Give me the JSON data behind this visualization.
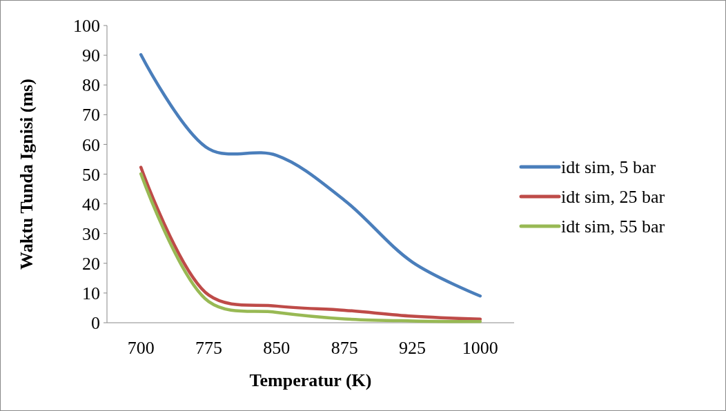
{
  "chart_data": {
    "type": "line",
    "xlabel": "Temperatur (K)",
    "ylabel": "Waktu Tunda Ignisi (ms)",
    "categories": [
      "700",
      "775",
      "850",
      "875",
      "925",
      "1000"
    ],
    "series": [
      {
        "name": "idt sim, 5 bar",
        "color": "#4a7ebb",
        "values": [
          90.2,
          58.5,
          56.3,
          41.2,
          20.4,
          9.0
        ]
      },
      {
        "name": "idt sim, 25 bar",
        "color": "#be4b48",
        "values": [
          52.3,
          9.3,
          5.6,
          4.2,
          2.2,
          1.2
        ]
      },
      {
        "name": "idt sim, 55 bar",
        "color": "#98b954",
        "values": [
          50.1,
          7.1,
          3.5,
          1.3,
          0.6,
          0.4
        ]
      }
    ],
    "ylim": [
      0,
      100
    ],
    "yticks": [
      0,
      10,
      20,
      30,
      40,
      50,
      60,
      70,
      80,
      90,
      100
    ],
    "grid": false,
    "legend": "right",
    "marker": "none",
    "line_style": "solid"
  }
}
